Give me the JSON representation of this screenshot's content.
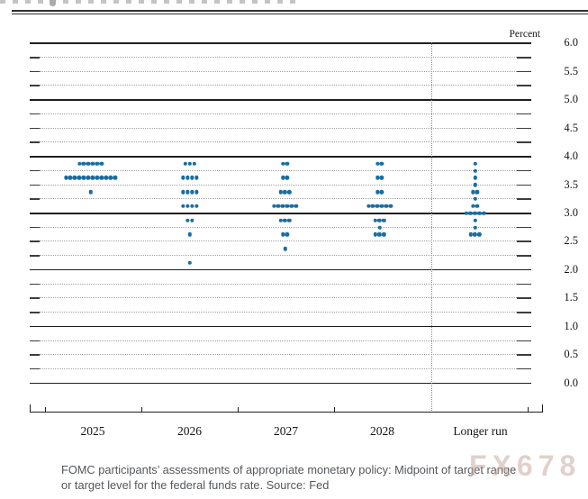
{
  "page": {
    "background": "#ffffff"
  },
  "header": {
    "note": "partially cropped text line at very top above double rule"
  },
  "chart": {
    "unit_label": "Percent",
    "y_axis_labels": [
      "6.0",
      "5.5",
      "5.0",
      "4.5",
      "4.0",
      "3.5",
      "3.0",
      "2.5",
      "2.0",
      "1.5",
      "1.0",
      "0.5",
      "0.0"
    ],
    "x_axis_labels": [
      "2025",
      "2026",
      "2027",
      "2028",
      "Longer run"
    ]
  },
  "chart_data": {
    "type": "scatter",
    "subtype": "fomc-dot-plot",
    "title": "",
    "xlabel": "",
    "ylabel": "Percent",
    "ylim": [
      0.0,
      6.0
    ],
    "y_label_interval": 0.5,
    "y_tick_interval": 0.25,
    "y_major_gridlines": [
      0.0,
      1.0,
      2.0,
      3.0,
      4.0,
      5.0,
      6.0
    ],
    "grid": "dotted minor lines at each 0.25, solid lines at integers",
    "legend": "none",
    "dot_color": "#1a6da1",
    "categories": [
      "2025",
      "2026",
      "2027",
      "2028",
      "Longer run"
    ],
    "separator_before_category": "Longer run",
    "series": [
      {
        "category": "2025",
        "dots": [
          {
            "rate": 3.875,
            "count": 6
          },
          {
            "rate": 3.625,
            "count": 12
          },
          {
            "rate": 3.375,
            "count": 1
          }
        ]
      },
      {
        "category": "2026",
        "dots": [
          {
            "rate": 3.875,
            "count": 3
          },
          {
            "rate": 3.625,
            "count": 4
          },
          {
            "rate": 3.375,
            "count": 4
          },
          {
            "rate": 3.125,
            "count": 4
          },
          {
            "rate": 2.875,
            "count": 2
          },
          {
            "rate": 2.625,
            "count": 1
          },
          {
            "rate": 2.125,
            "count": 1
          }
        ]
      },
      {
        "category": "2027",
        "dots": [
          {
            "rate": 3.875,
            "count": 2
          },
          {
            "rate": 3.625,
            "count": 2
          },
          {
            "rate": 3.375,
            "count": 3
          },
          {
            "rate": 3.125,
            "count": 6
          },
          {
            "rate": 2.875,
            "count": 3
          },
          {
            "rate": 2.625,
            "count": 2
          },
          {
            "rate": 2.375,
            "count": 1
          }
        ]
      },
      {
        "category": "2028",
        "dots": [
          {
            "rate": 3.875,
            "count": 2
          },
          {
            "rate": 3.625,
            "count": 2
          },
          {
            "rate": 3.375,
            "count": 2
          },
          {
            "rate": 3.125,
            "count": 6
          },
          {
            "rate": 2.875,
            "count": 3
          },
          {
            "rate": 2.75,
            "count": 1
          },
          {
            "rate": 2.625,
            "count": 3
          }
        ]
      },
      {
        "category": "Longer run",
        "dots": [
          {
            "rate": 3.875,
            "count": 1
          },
          {
            "rate": 3.75,
            "count": 1
          },
          {
            "rate": 3.625,
            "count": 1
          },
          {
            "rate": 3.5,
            "count": 1
          },
          {
            "rate": 3.375,
            "count": 2
          },
          {
            "rate": 3.25,
            "count": 1
          },
          {
            "rate": 3.125,
            "count": 2
          },
          {
            "rate": 3.0,
            "count": 5
          },
          {
            "rate": 2.875,
            "count": 1
          },
          {
            "rate": 2.75,
            "count": 1
          },
          {
            "rate": 2.625,
            "count": 3
          }
        ]
      }
    ]
  },
  "caption": {
    "line1": "FOMC participants’ assessments of appropriate monetary policy: Midpoint of target range",
    "line2": "or target level for the federal funds rate. Source: Fed"
  },
  "watermark": {
    "text": "FX678"
  }
}
